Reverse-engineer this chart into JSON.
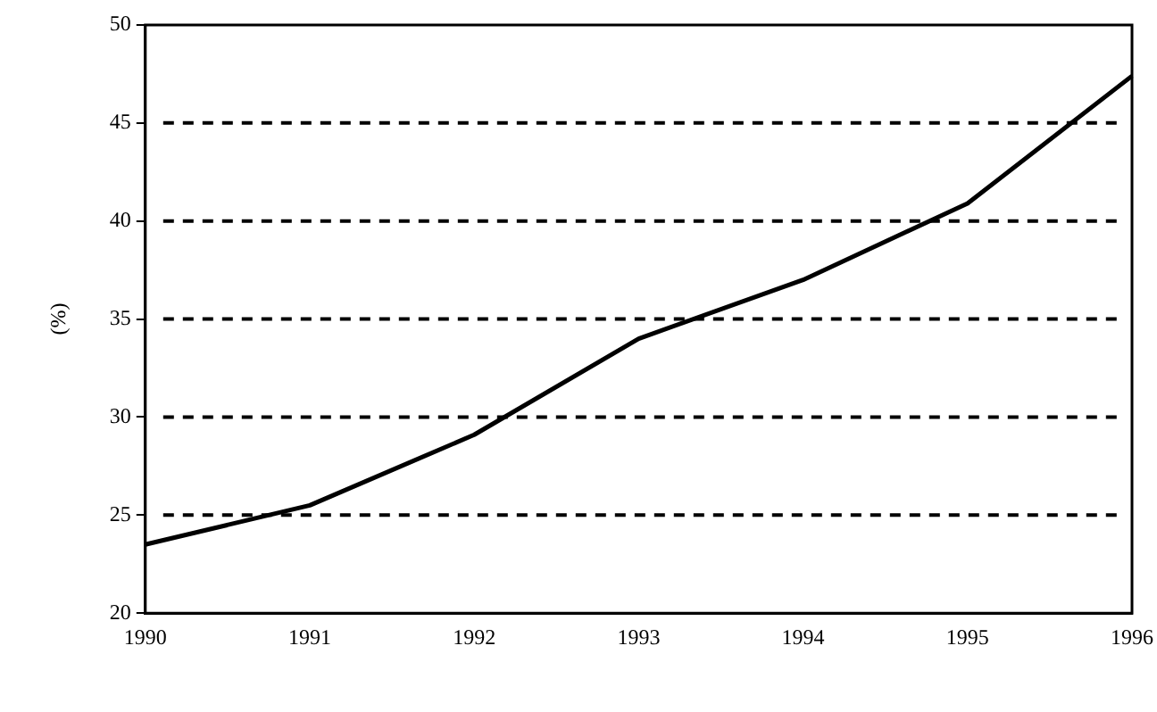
{
  "chart_data": {
    "type": "line",
    "ylabel": "(%)",
    "categories": [
      "1990",
      "1991",
      "1992",
      "1993",
      "1994",
      "1995",
      "1996"
    ],
    "series": [
      {
        "color": "#000000",
        "values": [
          23.5,
          25.5,
          29.1,
          34.0,
          37.0,
          40.9,
          47.4
        ]
      }
    ],
    "ylim": [
      20,
      50
    ],
    "yticks": [
      20,
      25,
      30,
      35,
      40,
      45,
      50
    ],
    "grid": "y",
    "line_style": "solid",
    "marker": "none",
    "legend": false
  }
}
